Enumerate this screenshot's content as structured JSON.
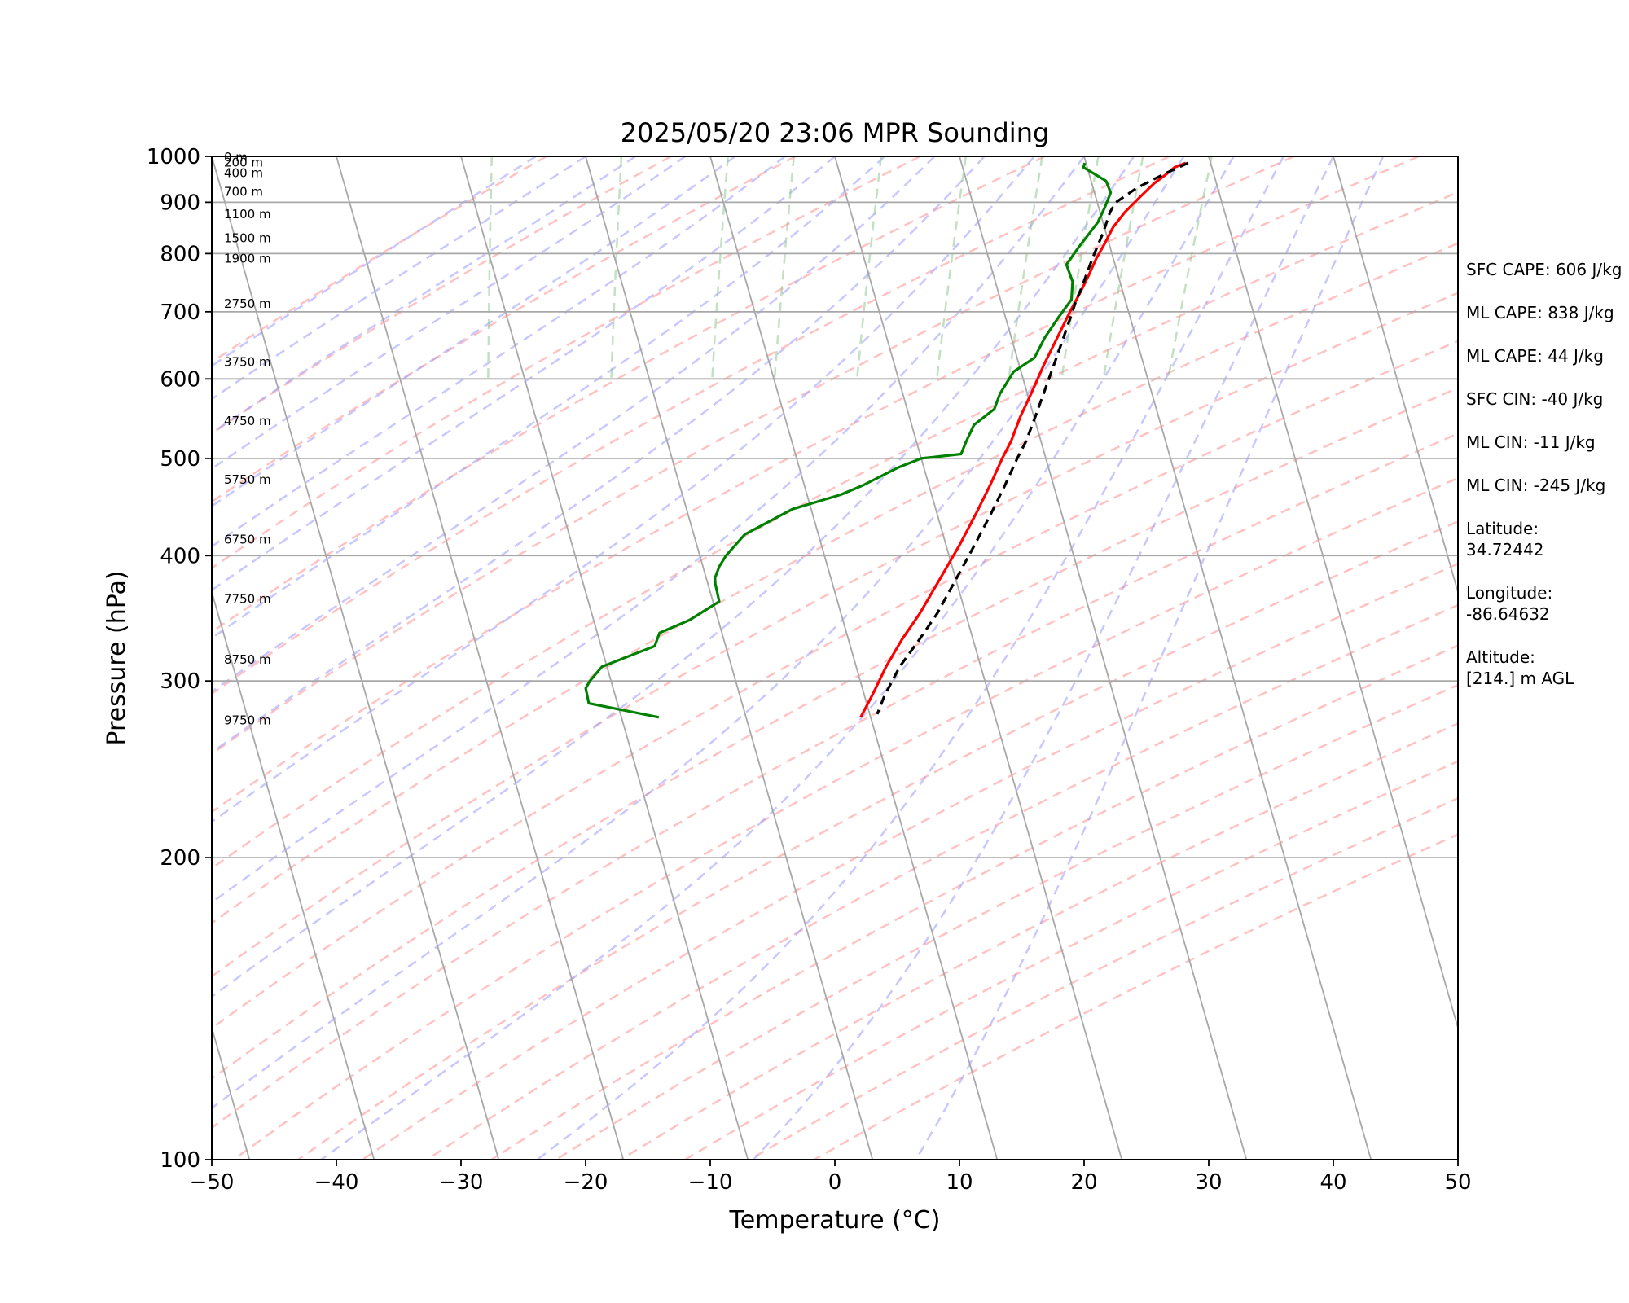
{
  "chart_data": {
    "type": "skew-t",
    "title": "2025/05/20 23:06 MPR Sounding",
    "xlabel": "Temperature (°C)",
    "ylabel": "Pressure (hPa)",
    "xlim": [
      -50,
      50
    ],
    "ylim": [
      1000,
      100
    ],
    "y_scale": "log",
    "grid": true,
    "x_ticks": [
      "−50",
      "−40",
      "−30",
      "−20",
      "−10",
      "0",
      "10",
      "20",
      "30",
      "40",
      "50"
    ],
    "y_ticks": [
      "100",
      "200",
      "300",
      "400",
      "500",
      "600",
      "700",
      "800",
      "900",
      "1000"
    ],
    "height_labels": [
      {
        "p": 998,
        "text": "0 m"
      },
      {
        "p": 986,
        "text": "200 m"
      },
      {
        "p": 962,
        "text": "400 m"
      },
      {
        "p": 922,
        "text": "700 m"
      },
      {
        "p": 876,
        "text": "1100 m"
      },
      {
        "p": 829,
        "text": "1500 m"
      },
      {
        "p": 791,
        "text": "1900 m"
      },
      {
        "p": 713,
        "text": "2750 m"
      },
      {
        "p": 624,
        "text": "3750 m"
      },
      {
        "p": 545,
        "text": "4750 m"
      },
      {
        "p": 476,
        "text": "5750 m"
      },
      {
        "p": 415,
        "text": "6750 m"
      },
      {
        "p": 362,
        "text": "7750 m"
      },
      {
        "p": 315,
        "text": "8750 m"
      },
      {
        "p": 274,
        "text": "9750 m"
      }
    ],
    "series": [
      {
        "color": "#ff0000",
        "points": [
          {
            "p": 985,
            "t": 28.0
          },
          {
            "p": 975,
            "t": 27.0
          },
          {
            "p": 960,
            "t": 26.2
          },
          {
            "p": 940,
            "t": 25.0
          },
          {
            "p": 910,
            "t": 23.5
          },
          {
            "p": 880,
            "t": 22.0
          },
          {
            "p": 850,
            "t": 20.7
          },
          {
            "p": 820,
            "t": 19.7
          },
          {
            "p": 790,
            "t": 18.6
          },
          {
            "p": 760,
            "t": 17.6
          },
          {
            "p": 730,
            "t": 16.5
          },
          {
            "p": 700,
            "t": 15.3
          },
          {
            "p": 660,
            "t": 13.7
          },
          {
            "p": 620,
            "t": 12.0
          },
          {
            "p": 580,
            "t": 10.3
          },
          {
            "p": 550,
            "t": 8.9
          },
          {
            "p": 520,
            "t": 7.6
          },
          {
            "p": 500,
            "t": 6.5
          },
          {
            "p": 470,
            "t": 4.9
          },
          {
            "p": 440,
            "t": 3.1
          },
          {
            "p": 410,
            "t": 1.1
          },
          {
            "p": 380,
            "t": -1.2
          },
          {
            "p": 350,
            "t": -3.7
          },
          {
            "p": 330,
            "t": -5.7
          },
          {
            "p": 310,
            "t": -7.6
          },
          {
            "p": 290,
            "t": -9.4
          },
          {
            "p": 276,
            "t": -10.8
          }
        ]
      },
      {
        "color": "#008000",
        "points": [
          {
            "p": 985,
            "t": 19.9
          },
          {
            "p": 975,
            "t": 19.7
          },
          {
            "p": 945,
            "t": 21.2
          },
          {
            "p": 920,
            "t": 21.3
          },
          {
            "p": 890,
            "t": 20.5
          },
          {
            "p": 860,
            "t": 19.6
          },
          {
            "p": 830,
            "t": 18.3
          },
          {
            "p": 810,
            "t": 17.4
          },
          {
            "p": 780,
            "t": 16.1
          },
          {
            "p": 750,
            "t": 16.2
          },
          {
            "p": 720,
            "t": 15.7
          },
          {
            "p": 690,
            "t": 14.2
          },
          {
            "p": 660,
            "t": 12.7
          },
          {
            "p": 630,
            "t": 11.4
          },
          {
            "p": 610,
            "t": 9.4
          },
          {
            "p": 580,
            "t": 7.8
          },
          {
            "p": 560,
            "t": 7.0
          },
          {
            "p": 540,
            "t": 5.0
          },
          {
            "p": 520,
            "t": 4.0
          },
          {
            "p": 505,
            "t": 3.3
          },
          {
            "p": 500,
            "t": 0.0
          },
          {
            "p": 490,
            "t": -2.0
          },
          {
            "p": 470,
            "t": -5.3
          },
          {
            "p": 460,
            "t": -7.3
          },
          {
            "p": 445,
            "t": -11.5
          },
          {
            "p": 420,
            "t": -15.9
          },
          {
            "p": 400,
            "t": -17.9
          },
          {
            "p": 390,
            "t": -18.7
          },
          {
            "p": 380,
            "t": -19.3
          },
          {
            "p": 375,
            "t": -19.4
          },
          {
            "p": 360,
            "t": -19.5
          },
          {
            "p": 345,
            "t": -22.3
          },
          {
            "p": 335,
            "t": -25.0
          },
          {
            "p": 325,
            "t": -25.7
          },
          {
            "p": 310,
            "t": -30.4
          },
          {
            "p": 300,
            "t": -31.7
          },
          {
            "p": 295,
            "t": -32.2
          },
          {
            "p": 285,
            "t": -32.3
          },
          {
            "p": 276,
            "t": -27.0
          }
        ]
      },
      {
        "color": "#000000",
        "dashed": true,
        "points": [
          {
            "p": 985,
            "t": 28.2
          },
          {
            "p": 960,
            "t": 26.0
          },
          {
            "p": 930,
            "t": 23.5
          },
          {
            "p": 900,
            "t": 21.5
          },
          {
            "p": 880,
            "t": 20.8
          },
          {
            "p": 860,
            "t": 20.3
          },
          {
            "p": 840,
            "t": 19.8
          },
          {
            "p": 820,
            "t": 19.2
          },
          {
            "p": 800,
            "t": 18.6
          },
          {
            "p": 780,
            "t": 18.0
          },
          {
            "p": 760,
            "t": 17.4
          },
          {
            "p": 740,
            "t": 16.8
          },
          {
            "p": 720,
            "t": 16.1
          },
          {
            "p": 700,
            "t": 15.5
          },
          {
            "p": 660,
            "t": 14.2
          },
          {
            "p": 620,
            "t": 12.8
          },
          {
            "p": 580,
            "t": 11.3
          },
          {
            "p": 550,
            "t": 10.1
          },
          {
            "p": 520,
            "t": 8.8
          },
          {
            "p": 500,
            "t": 7.7
          },
          {
            "p": 470,
            "t": 6.1
          },
          {
            "p": 440,
            "t": 4.3
          },
          {
            "p": 410,
            "t": 2.3
          },
          {
            "p": 380,
            "t": 0.1
          },
          {
            "p": 350,
            "t": -2.3
          },
          {
            "p": 330,
            "t": -4.3
          },
          {
            "p": 310,
            "t": -6.5
          },
          {
            "p": 290,
            "t": -8.4
          },
          {
            "p": 278,
            "t": -9.4
          }
        ]
      }
    ]
  },
  "stats": [
    "SFC CAPE: 606 J/kg",
    "ML CAPE: 838 J/kg",
    "ML CAPE: 44 J/kg",
    "SFC CIN: -40 J/kg",
    "ML CIN: -11 J/kg",
    "ML CIN: -245 J/kg"
  ],
  "location": {
    "latitude_label": "Latitude:",
    "latitude": "34.72442",
    "longitude_label": "Longitude:",
    "longitude": "-86.64632",
    "altitude_label": "Altitude:",
    "altitude": "[214.] m AGL"
  }
}
